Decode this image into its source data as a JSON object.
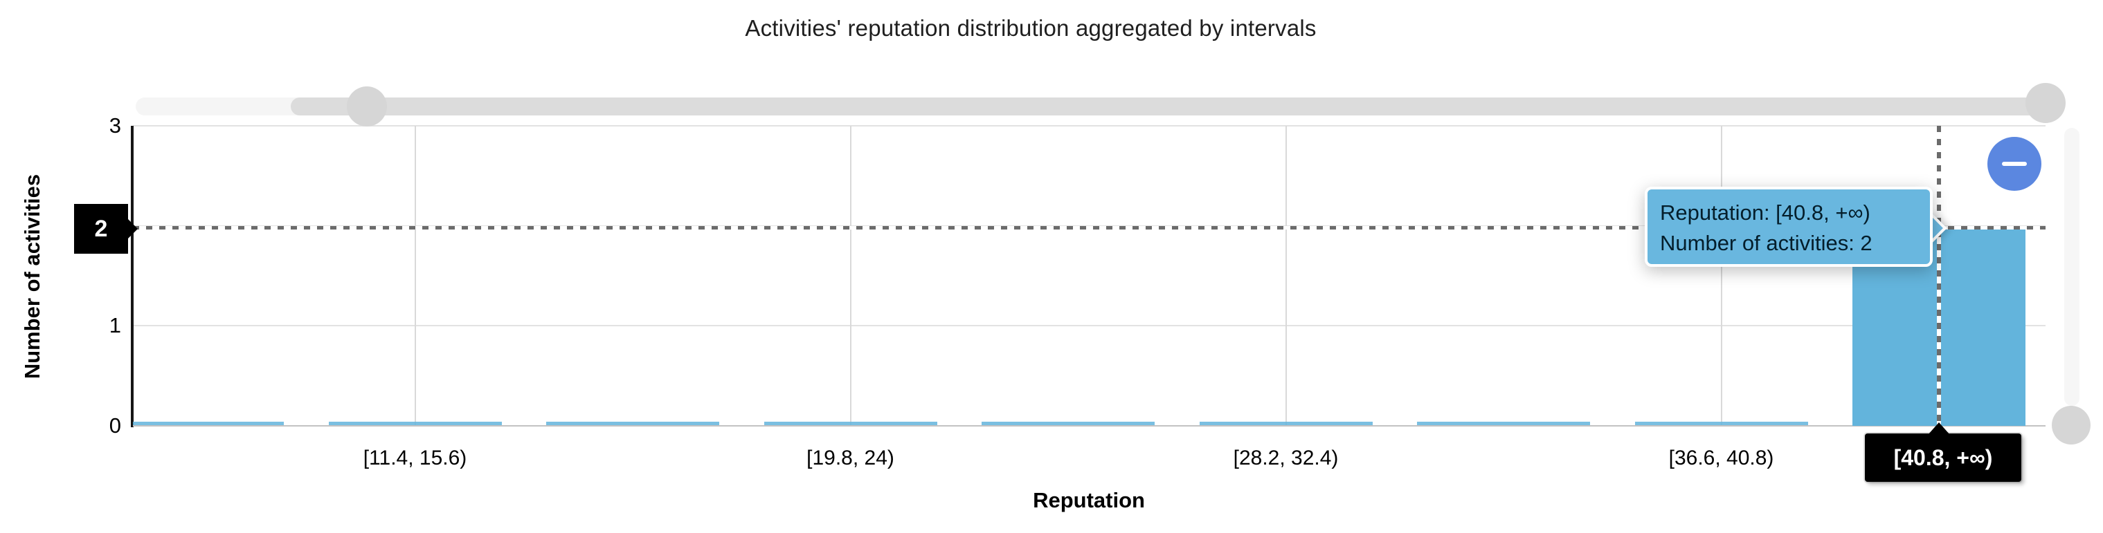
{
  "title": "Activities' reputation distribution aggregated by intervals",
  "chart_data": {
    "type": "bar",
    "variant": "histogram",
    "title": "Activities' reputation distribution aggregated by intervals",
    "xlabel": "Reputation",
    "ylabel": "Number of activities",
    "ylim": [
      0,
      3
    ],
    "y_ticks": [
      "0",
      "1",
      "2",
      "3"
    ],
    "categories": [
      "",
      "[11.4, 15.6)",
      "",
      "[19.8, 24)",
      "",
      "[28.2, 32.4)",
      "",
      "[36.6, 40.8)",
      "[40.8, +∞)"
    ],
    "values": [
      0,
      0,
      0,
      0,
      0,
      0,
      0,
      0,
      2
    ],
    "x_axis_labels_shown": [
      "[11.4, 15.6)",
      "[19.8, 24)",
      "[28.2, 32.4)",
      "[36.6, 40.8)"
    ],
    "grid": true,
    "legend": "none",
    "highlighted_bin": {
      "label": "[40.8, +∞)",
      "value": 2
    }
  },
  "tooltip": {
    "line1": "Reputation: [40.8, +∞)",
    "line2": "Number of activities: 2"
  },
  "crosshair": {
    "y_badge": "2",
    "x_badge": "[40.8, +∞)"
  },
  "controls": {
    "zoom_out_glyph": "−"
  },
  "colors": {
    "bar": "#63B4DC",
    "tooltip_bg": "#69B7DF",
    "button_blue": "#5B87E0",
    "badge_bg": "#000000",
    "slider_handle": "#D6D6D6",
    "slider_track_selected": "#DCDCDC",
    "slider_track_unselected": "#F5F5F5"
  }
}
